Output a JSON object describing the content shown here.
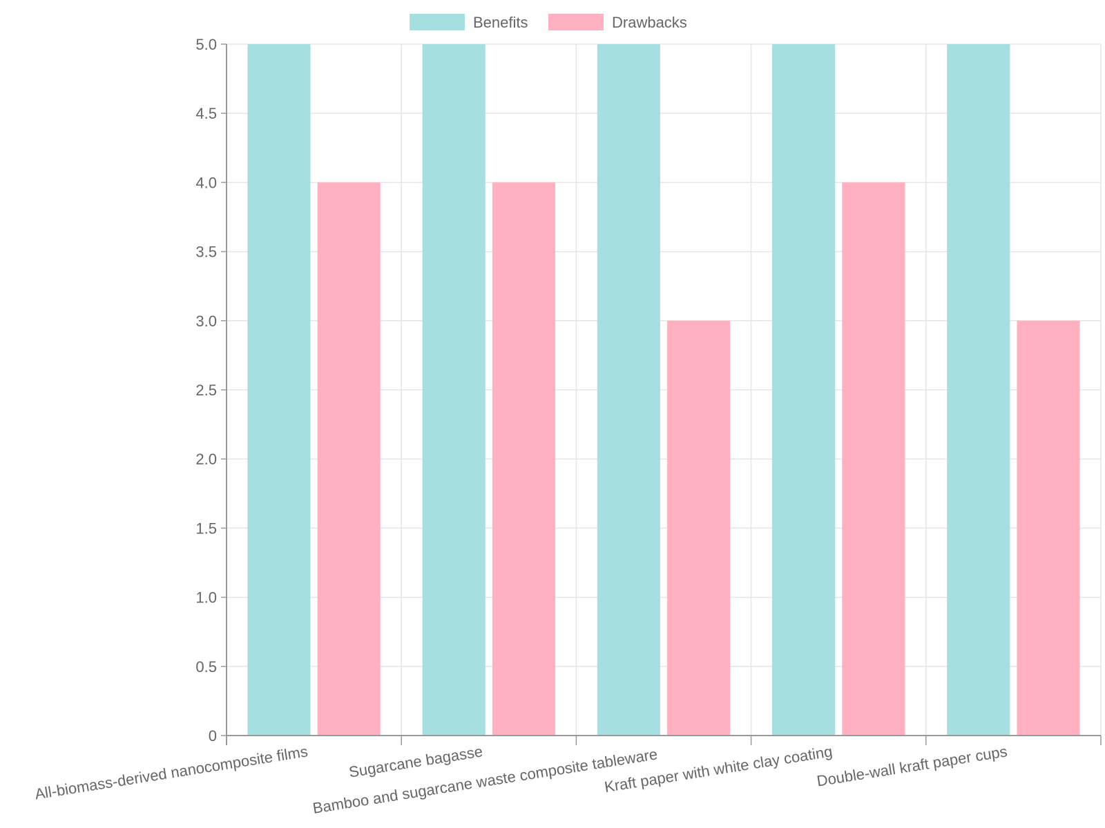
{
  "chart_data": {
    "type": "bar",
    "categories": [
      "All-biomass-derived nanocomposite films",
      "Sugarcane bagasse",
      "Bamboo and sugarcane waste composite tableware",
      "Kraft paper with white clay coating",
      "Double-wall kraft paper cups"
    ],
    "series": [
      {
        "name": "Benefits",
        "values": [
          5,
          5,
          5,
          5,
          5
        ],
        "color": "#a6dfe0"
      },
      {
        "name": "Drawbacks",
        "values": [
          4,
          4,
          3,
          4,
          3
        ],
        "color": "#ffb0c1"
      }
    ],
    "ylim": [
      0,
      5
    ],
    "yticks": [
      "0",
      "0.5",
      "1.0",
      "1.5",
      "2.0",
      "2.5",
      "3.0",
      "3.5",
      "4.0",
      "4.5",
      "5.0"
    ],
    "ytick_values": [
      0,
      0.5,
      1,
      1.5,
      2,
      2.5,
      3,
      3.5,
      4,
      4.5,
      5
    ],
    "grid": true,
    "legend": "top-center",
    "colors": {
      "grid": "#e5e5e5",
      "axis": "#999999",
      "text": "#666666"
    }
  }
}
